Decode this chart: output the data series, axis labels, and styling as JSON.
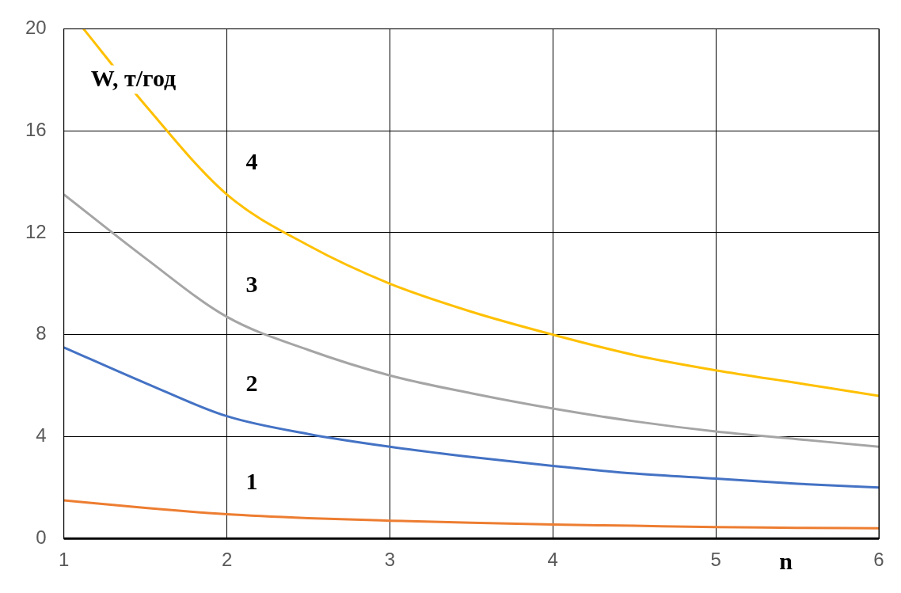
{
  "chart_data": {
    "type": "line",
    "xlabel": "n",
    "ylabel": "W, т/год",
    "xlim": [
      1,
      6
    ],
    "xticks": [
      1,
      2,
      3,
      4,
      5,
      6
    ],
    "ylim": [
      0,
      20
    ],
    "yticks": [
      0,
      4,
      8,
      12,
      16,
      20
    ],
    "grid": true,
    "marker": "none",
    "line_style": "solid",
    "series": [
      {
        "name": "1",
        "color": "#ed7d31",
        "x": [
          1,
          1.5,
          2,
          2.5,
          3,
          3.5,
          4,
          4.5,
          5,
          5.5,
          6
        ],
        "values": [
          1.5,
          1.2,
          0.95,
          0.8,
          0.7,
          0.62,
          0.55,
          0.5,
          0.45,
          0.42,
          0.4
        ]
      },
      {
        "name": "2",
        "color": "#4472c4",
        "x": [
          1,
          1.5,
          2,
          2.5,
          3,
          3.5,
          4,
          4.5,
          5,
          5.5,
          6
        ],
        "values": [
          7.5,
          6.1,
          4.8,
          4.1,
          3.6,
          3.2,
          2.85,
          2.55,
          2.35,
          2.15,
          2.0
        ]
      },
      {
        "name": "3",
        "color": "#a5a5a5",
        "x": [
          1,
          1.5,
          2,
          2.5,
          3,
          3.5,
          4,
          4.5,
          5,
          5.5,
          6
        ],
        "values": [
          13.5,
          11,
          8.7,
          7.4,
          6.4,
          5.7,
          5.1,
          4.6,
          4.2,
          3.9,
          3.6
        ]
      },
      {
        "name": "4",
        "color": "#ffc000",
        "x": [
          1.12,
          1.5,
          2,
          2.5,
          3,
          3.5,
          4,
          4.5,
          5,
          5.5,
          6
        ],
        "values": [
          20,
          17,
          13.5,
          11.5,
          10,
          8.9,
          8,
          7.2,
          6.6,
          6.1,
          5.6
        ]
      }
    ]
  }
}
